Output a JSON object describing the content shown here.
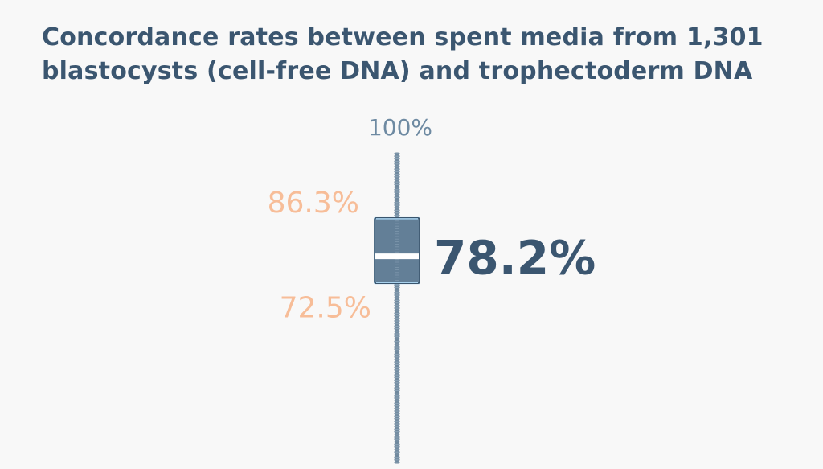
{
  "title": {
    "line1": "Concordance rates between spent media from 1,301",
    "line2": "blastocysts (cell-free DNA) and trophectoderm DNA"
  },
  "chart_data": {
    "type": "box",
    "title": "Concordance rates between spent media from 1,301 blastocysts (cell-free DNA) and trophectoderm DNA",
    "xlabel": "",
    "ylabel": "",
    "grid": false,
    "legend": "none",
    "y_max": 100,
    "y_max_label": "100%",
    "q3": 86.3,
    "q3_label": "86.3%",
    "median": 78.2,
    "median_label": "78.2%",
    "q1": 72.5,
    "q1_label": "72.5%"
  },
  "colors": {
    "background": "#f8f8f8",
    "title": "#3b5670",
    "box": "#637f97",
    "box_border": "#3a556d",
    "box_edge": "#a9d2ee",
    "median_line": "#ffffff",
    "whisker": "#8aa2b6",
    "quartile_labels": "#f7bd98",
    "max_label": "#6e8aa2",
    "median_label": "#3b5670"
  }
}
